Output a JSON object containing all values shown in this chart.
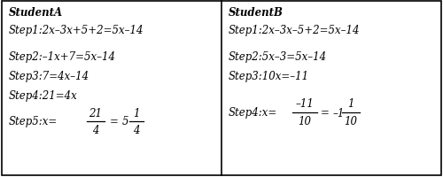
{
  "bg_color": "#ffffff",
  "border_color": "#000000",
  "student_a": {
    "header": "StudentA",
    "lines": [
      "Step1:2x–3x+5+2=5x–14",
      "Step2:–1x+7=5x–14",
      "Step3:7=4x–14",
      "Step4:21=4x"
    ],
    "step5_prefix": "Step5:x=",
    "frac_num": "21",
    "frac_den": "4",
    "mixed_int": "5",
    "mixed_num": "1",
    "mixed_den": "4"
  },
  "student_b": {
    "header": "StudentB",
    "lines": [
      "Step1:2x–3x–5+2=5x–14",
      "Step2:5x–3=5x–14",
      "Step3:10x=–11"
    ],
    "step4_prefix": "Step4:x=",
    "frac_num": "–11",
    "frac_den": "10",
    "mixed_int": "–1",
    "mixed_num": "1",
    "mixed_den": "10"
  },
  "font_size": 8.5,
  "header_font_size": 8.5
}
